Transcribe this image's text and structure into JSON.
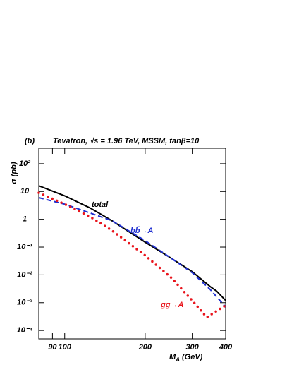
{
  "chart_data": {
    "type": "line",
    "panel": "(b)",
    "title": "Tevatron, √s = 1.96 TeV,  MSSM, tanβ=10",
    "y_label": "σ (pb)",
    "x_label": [
      "M",
      "A",
      " (GeV)"
    ],
    "log_x": true,
    "log_y": true,
    "xlim": [
      80,
      400
    ],
    "ylim": [
      5e-05,
      360
    ],
    "xticks": [
      90,
      100,
      200,
      300,
      400
    ],
    "yticks": [
      {
        "value": 0.0001,
        "label": "10⁻⁴"
      },
      {
        "value": 0.001,
        "label": "10⁻³"
      },
      {
        "value": 0.01,
        "label": "10⁻²"
      },
      {
        "value": 0.1,
        "label": "10⁻¹"
      },
      1,
      10,
      {
        "value": 100,
        "label": "10²"
      }
    ],
    "series": [
      {
        "name": "total",
        "color": "#000000",
        "style": "solid",
        "x": [
          80,
          100,
          125,
          150,
          200,
          250,
          300,
          350,
          370,
          400
        ],
        "values": [
          16,
          7,
          2.5,
          0.9,
          0.15,
          0.04,
          0.013,
          0.0038,
          0.0026,
          0.0012
        ]
      },
      {
        "name": "bb̄→A",
        "color": "#1f2fd0",
        "style": "dashed",
        "x": [
          80,
          100,
          150,
          200,
          250,
          300,
          350,
          400
        ],
        "values": [
          6,
          3.5,
          0.9,
          0.17,
          0.04,
          0.012,
          0.003,
          0.0007
        ]
      },
      {
        "name": "gg→A",
        "color": "#e8141c",
        "style": "dotted",
        "x": [
          80,
          100,
          125,
          150,
          200,
          250,
          300,
          340,
          370,
          400
        ],
        "values": [
          9,
          3.5,
          1.2,
          0.4,
          0.05,
          0.008,
          0.0012,
          0.0003,
          0.0005,
          0.0008
        ]
      }
    ]
  }
}
